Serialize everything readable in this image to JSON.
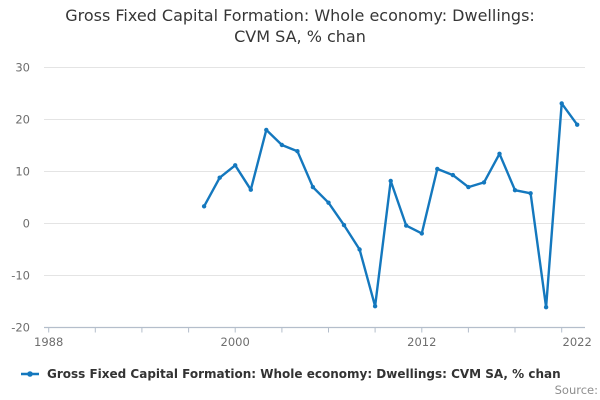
{
  "chart_data": {
    "type": "line",
    "title": "Gross Fixed Capital Formation: Whole economy: Dwellings: CVM SA, % chan",
    "title_lines": [
      "Gross Fixed Capital Formation: Whole economy: Dwellings:",
      "CVM SA, % chan"
    ],
    "legend": "Gross Fixed Capital Formation: Whole economy: Dwellings: CVM SA, % chan",
    "source_label": "Source:",
    "x": [
      1998,
      1999,
      2000,
      2001,
      2002,
      2003,
      2004,
      2005,
      2006,
      2007,
      2008,
      2009,
      2010,
      2011,
      2012,
      2013,
      2014,
      2015,
      2016,
      2017,
      2018,
      2019,
      2020,
      2021,
      2022
    ],
    "values": [
      3.3,
      8.8,
      11.2,
      6.5,
      18.0,
      15.1,
      13.9,
      7.0,
      4.0,
      -0.3,
      -5.0,
      -15.9,
      8.2,
      -0.4,
      -1.9,
      10.5,
      9.3,
      7.0,
      7.9,
      13.4,
      6.4,
      5.8,
      -16.1,
      23.1,
      19.0
    ],
    "xlabel": "",
    "ylabel": "",
    "xlim": [
      1987.7,
      2022.5
    ],
    "ylim": [
      -20,
      30
    ],
    "y_ticks": [
      30,
      20,
      10,
      0,
      -10,
      -20
    ],
    "x_tick_labels": [
      1988,
      2000,
      2012,
      2022
    ],
    "x_minor_ticks_start": 1988,
    "x_minor_ticks_end": 2021,
    "x_minor_ticks_every": 3,
    "grid": true,
    "legend_position": "bottom-left",
    "colors": {
      "line": "#1478be",
      "grid": "#e4e4e4",
      "axis": "#b4becb",
      "tick_label": "#6e6e6e",
      "title": "#363636",
      "legend_text": "#333333",
      "source": "#8e8e8e"
    }
  }
}
